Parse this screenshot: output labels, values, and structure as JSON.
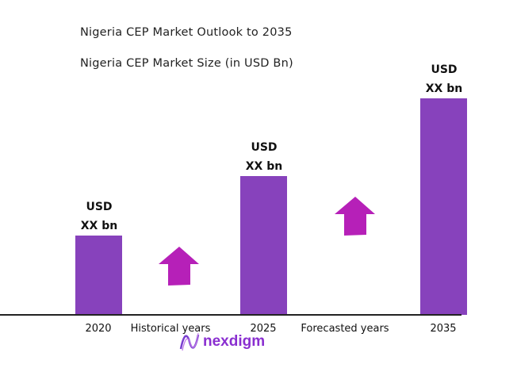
{
  "chart_data": {
    "type": "bar",
    "title": "Nigeria CEP Market Outlook to 2035",
    "subtitle": "Nigeria CEP Market Size (in USD Bn)",
    "categories": [
      "2020",
      "2025",
      "2035"
    ],
    "values": [
      100,
      175,
      273
    ],
    "data_labels": [
      [
        "USD",
        "XX bn"
      ],
      [
        "USD",
        "XX bn"
      ],
      [
        "USD",
        "XX bn"
      ]
    ],
    "annotations": [
      "Historical years",
      "Forecasted years"
    ],
    "ylim": [
      0,
      300
    ],
    "grid": false,
    "bar_color": "#8742bc",
    "arrow_color": "#b620b8"
  },
  "brand": {
    "logo_text": "nexdigm"
  }
}
